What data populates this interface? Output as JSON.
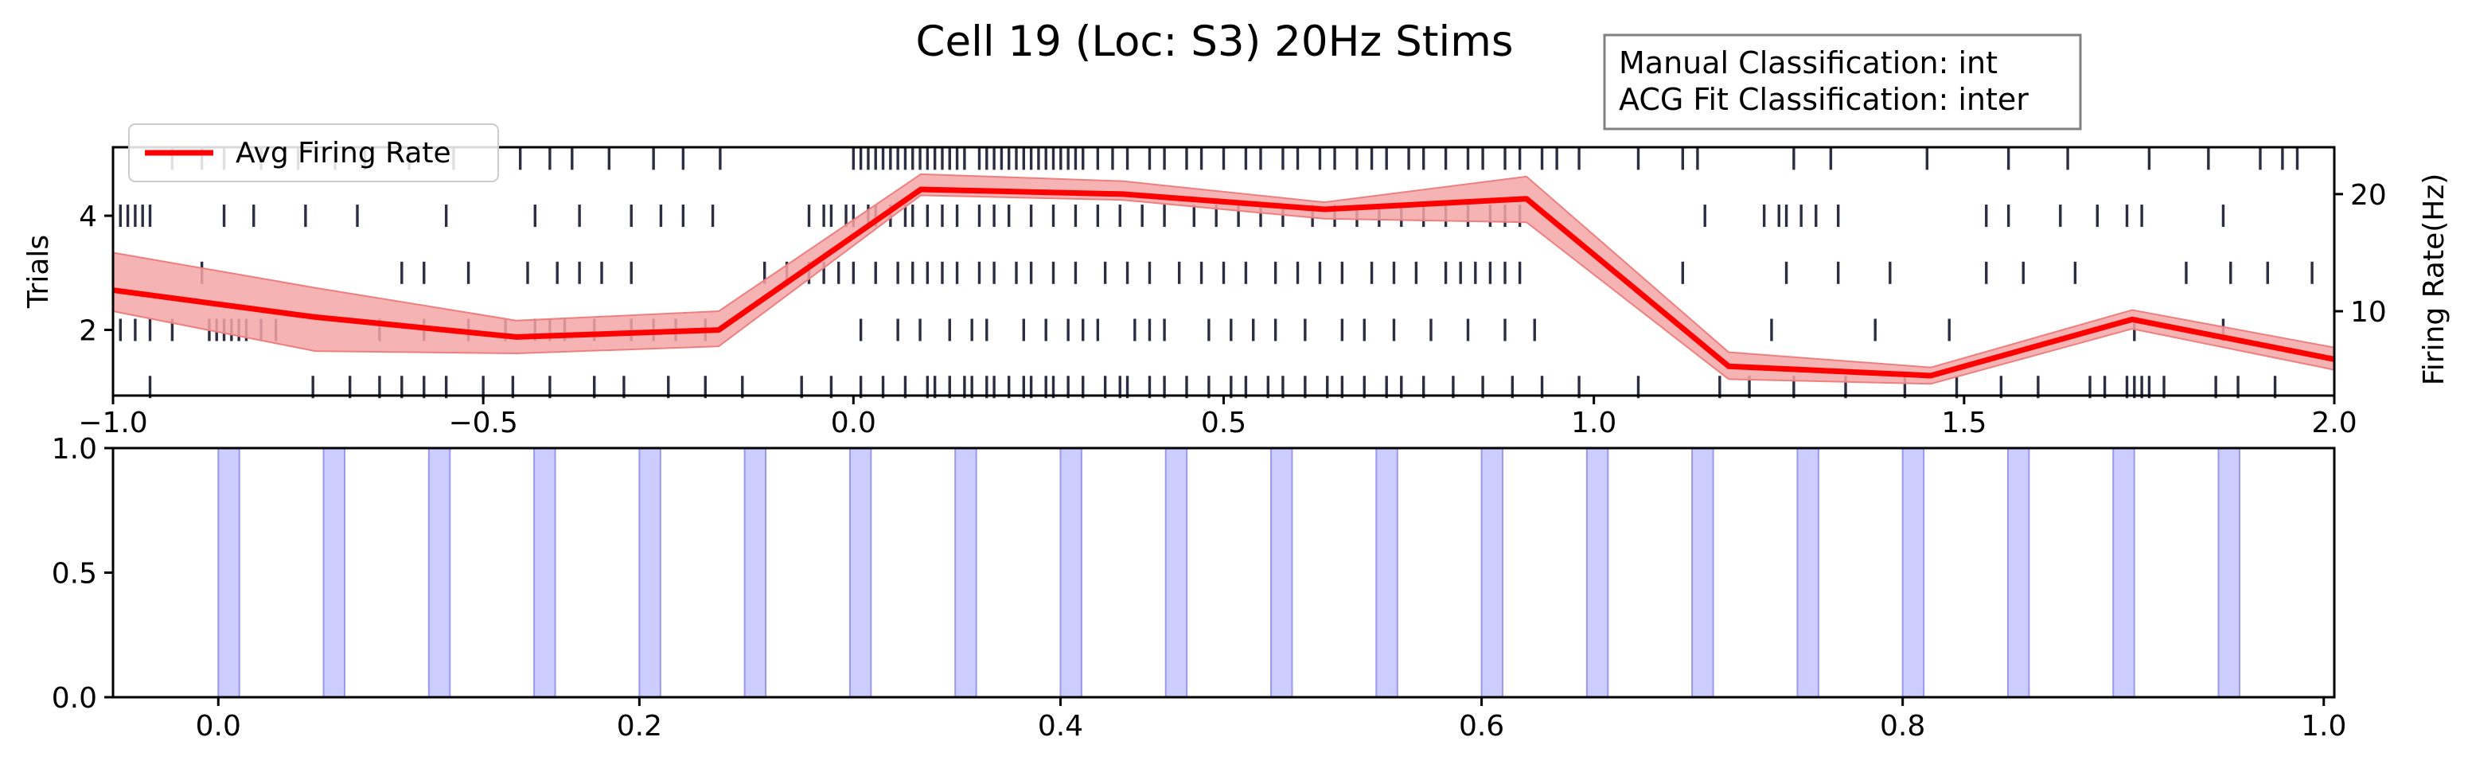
{
  "title": "Cell 19 (Loc: S3) 20Hz Stims",
  "info_box": {
    "line1": "Manual Classification: int",
    "line2": "ACG Fit Classification: inter"
  },
  "colors": {
    "raster": "#2b2d42",
    "rate_line": "#ff0000",
    "rate_band": "#f4a6a6",
    "stim": "#ccccff",
    "stim_edge": "#9999ee"
  },
  "chart_data": [
    {
      "type": "line",
      "panel": "top",
      "title": "Cell 19 (Loc: S3) 20Hz Stims",
      "ylabel": "Trials",
      "ylabel_right": "Firing Rate(Hz)",
      "xlim": [
        -1.0,
        2.0
      ],
      "ylim": [
        0.85,
        5.2
      ],
      "ylim_right": [
        2.8,
        24.0
      ],
      "x_ticks": [
        {
          "v": -1.0,
          "label": "−1.0"
        },
        {
          "v": -0.5,
          "label": "−0.5"
        },
        {
          "v": 0.0,
          "label": "0.0"
        },
        {
          "v": 0.5,
          "label": "0.5"
        },
        {
          "v": 1.0,
          "label": "1.0"
        },
        {
          "v": 1.5,
          "label": "1.5"
        },
        {
          "v": 2.0,
          "label": "2.0"
        }
      ],
      "y_ticks": [
        {
          "v": 2,
          "label": "2"
        },
        {
          "v": 4,
          "label": "4"
        }
      ],
      "y_ticks_right": [
        {
          "v": 10,
          "label": "10"
        },
        {
          "v": 20,
          "label": "20"
        }
      ],
      "legend": {
        "label": "Avg Firing Rate",
        "placement": "upper-left"
      },
      "rate": {
        "x": [
          -1.0,
          -0.727,
          -0.455,
          -0.182,
          0.091,
          0.364,
          0.636,
          0.909,
          1.182,
          1.455,
          1.727,
          2.0
        ],
        "y": [
          11.8,
          9.5,
          7.8,
          8.4,
          20.4,
          20.0,
          18.7,
          19.6,
          5.3,
          4.5,
          9.3,
          5.9
        ],
        "lower": [
          10.0,
          6.6,
          6.4,
          7.0,
          19.9,
          19.5,
          17.9,
          17.6,
          4.2,
          3.8,
          8.5,
          5.0
        ],
        "upper": [
          15.0,
          12.0,
          9.2,
          10.0,
          21.7,
          21.1,
          19.3,
          21.5,
          6.5,
          5.2,
          10.1,
          6.9
        ]
      },
      "raster": [
        {
          "trial": 1,
          "spikes": [
            -0.95,
            -0.73,
            -0.68,
            -0.64,
            -0.61,
            -0.58,
            -0.55,
            -0.5,
            -0.46,
            -0.41,
            -0.35,
            -0.31,
            -0.25,
            -0.2,
            -0.15,
            -0.07,
            -0.03,
            0.01,
            0.04,
            0.07,
            0.1,
            0.11,
            0.13,
            0.15,
            0.16,
            0.18,
            0.19,
            0.21,
            0.23,
            0.24,
            0.26,
            0.27,
            0.29,
            0.31,
            0.34,
            0.36,
            0.37,
            0.4,
            0.42,
            0.45,
            0.48,
            0.51,
            0.53,
            0.56,
            0.58,
            0.61,
            0.64,
            0.66,
            0.69,
            0.72,
            0.74,
            0.77,
            0.81,
            0.85,
            0.89,
            0.93,
            0.98,
            1.06,
            1.17,
            1.21,
            1.27,
            1.34,
            1.42,
            1.49,
            1.55,
            1.6,
            1.67,
            1.69,
            1.72,
            1.73,
            1.74,
            1.75,
            1.77,
            1.84,
            1.87,
            1.92
          ]
        },
        {
          "trial": 2,
          "spikes": [
            -0.99,
            -0.97,
            -0.95,
            -0.92,
            -0.87,
            -0.86,
            -0.85,
            -0.84,
            -0.83,
            -0.82,
            -0.8,
            -0.78,
            -0.64,
            -0.58,
            -0.52,
            -0.47,
            -0.43,
            -0.41,
            -0.39,
            -0.35,
            -0.3,
            -0.27,
            -0.24,
            -0.2,
            0.01,
            0.06,
            0.09,
            0.13,
            0.16,
            0.18,
            0.23,
            0.26,
            0.29,
            0.31,
            0.33,
            0.38,
            0.4,
            0.42,
            0.48,
            0.51,
            0.54,
            0.57,
            0.61,
            0.66,
            0.69,
            0.73,
            0.78,
            0.83,
            0.88,
            0.92,
            1.24,
            1.38,
            1.48,
            1.73,
            1.85
          ]
        },
        {
          "trial": 3,
          "spikes": [
            -0.88,
            -0.61,
            -0.58,
            -0.52,
            -0.44,
            -0.4,
            -0.37,
            -0.34,
            -0.3,
            -0.12,
            -0.09,
            -0.06,
            -0.04,
            -0.02,
            0.0,
            0.03,
            0.06,
            0.08,
            0.1,
            0.12,
            0.14,
            0.17,
            0.19,
            0.22,
            0.24,
            0.27,
            0.3,
            0.34,
            0.37,
            0.4,
            0.44,
            0.47,
            0.5,
            0.53,
            0.57,
            0.6,
            0.63,
            0.66,
            0.7,
            0.73,
            0.76,
            0.8,
            0.82,
            0.84,
            0.86,
            0.88,
            0.9,
            1.12,
            1.26,
            1.33,
            1.4,
            1.53,
            1.58,
            1.65,
            1.8,
            1.86,
            1.91,
            1.97
          ]
        },
        {
          "trial": 4,
          "spikes": [
            -0.99,
            -0.98,
            -0.97,
            -0.96,
            -0.95,
            -0.85,
            -0.81,
            -0.74,
            -0.67,
            -0.55,
            -0.43,
            -0.37,
            -0.3,
            -0.26,
            -0.23,
            -0.19,
            -0.06,
            -0.04,
            -0.03,
            -0.01,
            0.0,
            0.02,
            0.03,
            0.05,
            0.07,
            0.08,
            0.1,
            0.12,
            0.14,
            0.17,
            0.19,
            0.21,
            0.24,
            0.27,
            0.3,
            0.33,
            0.36,
            0.39,
            0.42,
            0.46,
            0.49,
            0.52,
            0.55,
            0.58,
            0.62,
            0.65,
            0.68,
            0.71,
            0.74,
            0.77,
            0.8,
            0.83,
            0.86,
            0.88,
            0.9,
            1.15,
            1.23,
            1.25,
            1.26,
            1.28,
            1.3,
            1.33,
            1.53,
            1.56,
            1.63,
            1.68,
            1.72,
            1.74,
            1.85
          ]
        },
        {
          "trial": 5,
          "spikes": [
            -0.92,
            -0.88,
            -0.85,
            -0.8,
            -0.75,
            -0.7,
            -0.66,
            -0.6,
            -0.54,
            -0.45,
            -0.41,
            -0.38,
            -0.33,
            -0.27,
            -0.23,
            -0.18,
            0.0,
            0.01,
            0.02,
            0.03,
            0.04,
            0.05,
            0.06,
            0.07,
            0.08,
            0.09,
            0.1,
            0.11,
            0.12,
            0.13,
            0.14,
            0.15,
            0.17,
            0.18,
            0.19,
            0.2,
            0.21,
            0.22,
            0.23,
            0.24,
            0.25,
            0.26,
            0.27,
            0.28,
            0.29,
            0.3,
            0.31,
            0.33,
            0.35,
            0.37,
            0.4,
            0.42,
            0.45,
            0.47,
            0.5,
            0.53,
            0.55,
            0.58,
            0.6,
            0.63,
            0.65,
            0.68,
            0.7,
            0.72,
            0.75,
            0.77,
            0.8,
            0.83,
            0.85,
            0.88,
            0.9,
            0.93,
            0.95,
            0.98,
            1.06,
            1.12,
            1.14,
            1.27,
            1.32,
            1.45,
            1.56,
            1.64,
            1.75,
            1.83,
            1.9,
            1.93,
            1.95
          ]
        }
      ]
    },
    {
      "type": "bar",
      "panel": "bottom",
      "xlim": [
        -0.05,
        1.005
      ],
      "ylim": [
        0.0,
        1.0
      ],
      "x_ticks": [
        {
          "v": 0.0,
          "label": "0.0"
        },
        {
          "v": 0.2,
          "label": "0.2"
        },
        {
          "v": 0.4,
          "label": "0.4"
        },
        {
          "v": 0.6,
          "label": "0.6"
        },
        {
          "v": 0.8,
          "label": "0.8"
        },
        {
          "v": 1.0,
          "label": "1.0"
        }
      ],
      "y_ticks": [
        {
          "v": 0.0,
          "label": "0.0"
        },
        {
          "v": 0.5,
          "label": "0.5"
        },
        {
          "v": 1.0,
          "label": "1.0"
        }
      ],
      "stim_width": 0.01,
      "stim_onsets": [
        0.0,
        0.05,
        0.1,
        0.15,
        0.2,
        0.25,
        0.3,
        0.35,
        0.4,
        0.45,
        0.5,
        0.55,
        0.6,
        0.65,
        0.7,
        0.75,
        0.8,
        0.85,
        0.9,
        0.95
      ]
    }
  ]
}
